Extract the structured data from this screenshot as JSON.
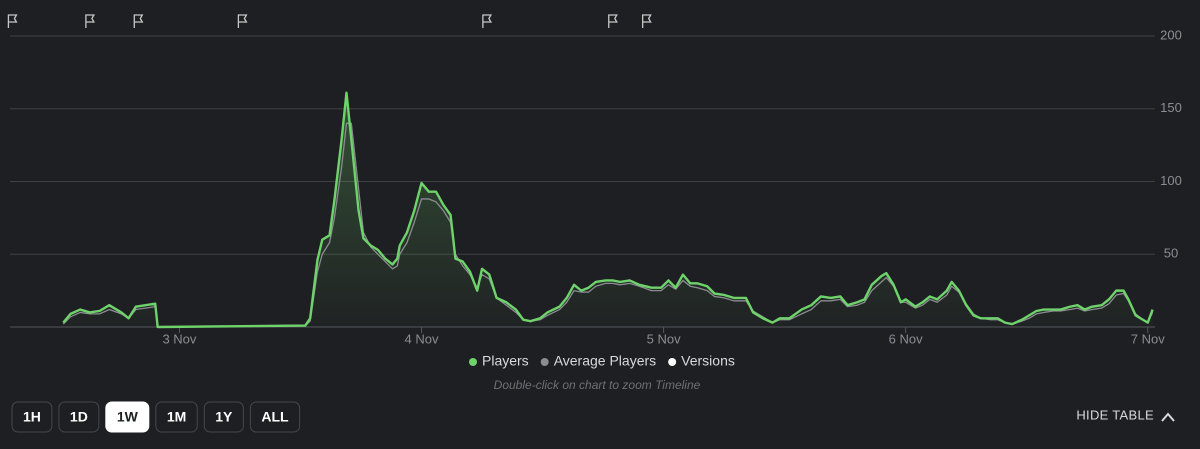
{
  "chart_data": {
    "type": "line",
    "x": [
      2.52,
      2.55,
      2.59,
      2.63,
      2.67,
      2.71,
      2.76,
      2.79,
      2.82,
      2.86,
      2.9,
      2.91,
      3.52,
      3.54,
      3.57,
      3.59,
      3.62,
      3.64,
      3.67,
      3.69,
      3.71,
      3.74,
      3.76,
      3.79,
      3.82,
      3.85,
      3.88,
      3.9,
      3.91,
      3.94,
      3.97,
      4.0,
      4.03,
      4.06,
      4.09,
      4.12,
      4.14,
      4.17,
      4.2,
      4.23,
      4.25,
      4.28,
      4.31,
      4.35,
      4.39,
      4.42,
      4.45,
      4.49,
      4.52,
      4.57,
      4.6,
      4.63,
      4.66,
      4.69,
      4.72,
      4.76,
      4.79,
      4.82,
      4.86,
      4.9,
      4.95,
      4.99,
      5.02,
      5.05,
      5.08,
      5.11,
      5.14,
      5.18,
      5.21,
      5.25,
      5.29,
      5.34,
      5.37,
      5.41,
      5.45,
      5.48,
      5.52,
      5.57,
      5.61,
      5.65,
      5.69,
      5.73,
      5.76,
      5.8,
      5.83,
      5.86,
      5.9,
      5.92,
      5.95,
      5.98,
      6.0,
      6.04,
      6.07,
      6.1,
      6.13,
      6.17,
      6.19,
      6.22,
      6.25,
      6.28,
      6.31,
      6.35,
      6.38,
      6.41,
      6.44,
      6.48,
      6.51,
      6.54,
      6.57,
      6.61,
      6.64,
      6.68,
      6.71,
      6.74,
      6.77,
      6.81,
      6.84,
      6.87,
      6.9,
      6.92,
      6.95,
      6.98,
      7.0,
      7.02
    ],
    "series": [
      {
        "name": "Players",
        "color": "#6fd36b",
        "values": [
          3,
          9,
          12,
          10,
          11,
          15,
          10,
          6,
          14,
          15,
          16,
          0,
          1,
          6,
          46,
          60,
          63,
          87,
          129,
          161,
          129,
          80,
          61,
          56,
          53,
          47,
          43,
          47,
          56,
          65,
          80,
          99,
          93,
          93,
          84,
          77,
          47,
          45,
          38,
          25,
          40,
          36,
          20,
          17,
          12,
          5,
          4,
          6,
          10,
          14,
          20,
          29,
          25,
          27,
          31,
          32,
          32,
          31,
          32,
          29,
          27,
          27,
          32,
          27,
          36,
          30,
          30,
          28,
          23,
          22,
          20,
          20,
          10,
          6,
          3,
          6,
          6,
          12,
          15,
          21,
          20,
          21,
          15,
          17,
          19,
          29,
          35,
          37,
          29,
          17,
          19,
          14,
          17,
          21,
          19,
          25,
          31,
          25,
          15,
          8,
          6,
          6,
          6,
          3,
          2,
          5,
          8,
          11,
          12,
          12,
          12,
          14,
          15,
          12,
          14,
          15,
          19,
          25,
          25,
          19,
          8,
          5,
          3,
          12
        ]
      },
      {
        "name": "Average Players",
        "color": "#8a8c90",
        "values": [
          2,
          7,
          10,
          9,
          9,
          12,
          9,
          6,
          12,
          13,
          14,
          0,
          1,
          4,
          38,
          50,
          58,
          75,
          110,
          140,
          140,
          95,
          65,
          55,
          50,
          45,
          40,
          42,
          50,
          58,
          72,
          88,
          88,
          86,
          80,
          72,
          50,
          42,
          36,
          27,
          36,
          33,
          20,
          15,
          10,
          5,
          4,
          5,
          8,
          12,
          17,
          25,
          24,
          24,
          28,
          30,
          30,
          29,
          30,
          28,
          25,
          25,
          29,
          26,
          32,
          28,
          27,
          25,
          21,
          20,
          18,
          18,
          11,
          7,
          3,
          5,
          5,
          9,
          12,
          18,
          18,
          19,
          14,
          15,
          17,
          25,
          31,
          34,
          28,
          17,
          17,
          13,
          15,
          19,
          17,
          22,
          28,
          24,
          16,
          9,
          6,
          5,
          5,
          3,
          2,
          4,
          6,
          9,
          10,
          11,
          11,
          12,
          13,
          11,
          12,
          13,
          16,
          22,
          23,
          18,
          9,
          5,
          3,
          10
        ]
      }
    ],
    "versions": {
      "name": "Versions",
      "color": "#ffffff",
      "x": [
        2.31,
        2.63,
        2.83,
        3.26,
        4.27,
        4.79,
        4.93
      ]
    },
    "xlim": [
      2.3,
      7.03
    ],
    "xticks": [
      {
        "value": 3,
        "label": "3 Nov"
      },
      {
        "value": 4,
        "label": "4 Nov"
      },
      {
        "value": 5,
        "label": "5 Nov"
      },
      {
        "value": 6,
        "label": "6 Nov"
      },
      {
        "value": 7,
        "label": "7 Nov"
      }
    ],
    "ylim": [
      0,
      200
    ],
    "yticks": [
      50,
      100,
      150,
      200
    ],
    "grid": true,
    "hint": "Double-click on chart to zoom Timeline"
  },
  "ui": {
    "ranges": [
      "1H",
      "1D",
      "1W",
      "1M",
      "1Y",
      "ALL"
    ],
    "selected": 2,
    "toggle": "HIDE TABLE"
  }
}
